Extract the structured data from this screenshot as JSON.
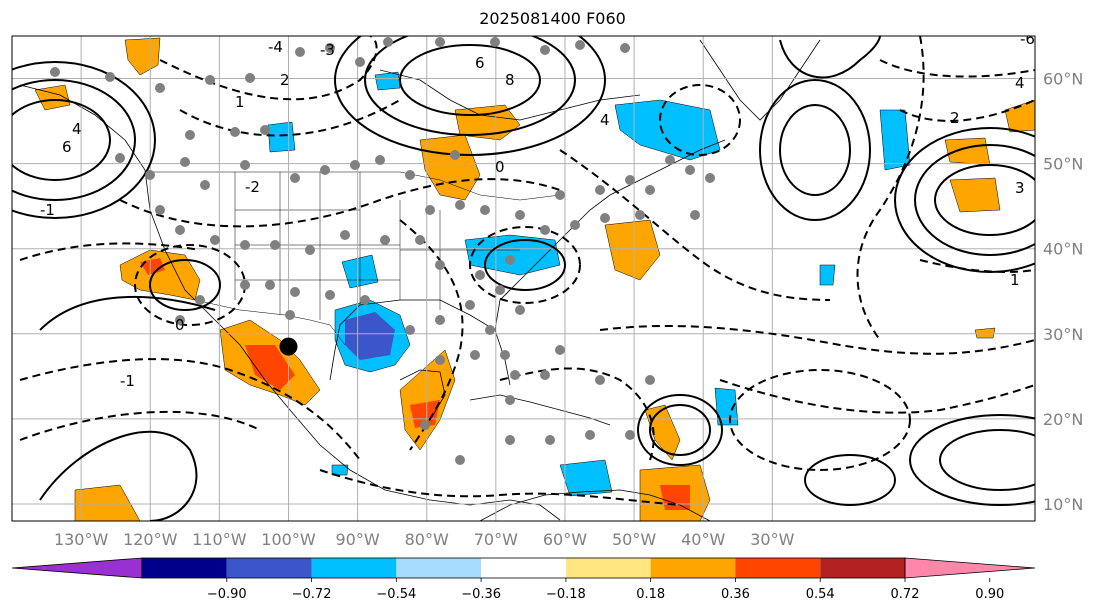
{
  "title": "2025081400 F060",
  "map": {
    "projection": "lat-lon",
    "lon_range": [
      -140,
      8
    ],
    "lat_range": [
      8,
      65
    ],
    "lon_ticks": [
      {
        "lon": -130,
        "label": "130°W"
      },
      {
        "lon": -120,
        "label": "120°W"
      },
      {
        "lon": -110,
        "label": "110°W"
      },
      {
        "lon": -100,
        "label": "100°W"
      },
      {
        "lon": -90,
        "label": "90°W"
      },
      {
        "lon": -80,
        "label": "80°W"
      },
      {
        "lon": -70,
        "label": "70°W"
      },
      {
        "lon": -60,
        "label": "60°W"
      },
      {
        "lon": -50,
        "label": "50°W"
      },
      {
        "lon": -40,
        "label": "40°W"
      },
      {
        "lon": -30,
        "label": "30°W"
      }
    ],
    "lat_ticks": [
      {
        "lat": 60,
        "label": "60°N"
      },
      {
        "lat": 50,
        "label": "50°N"
      },
      {
        "lat": 40,
        "label": "40°N"
      },
      {
        "lat": 30,
        "label": "30°N"
      },
      {
        "lat": 20,
        "label": "20°N"
      },
      {
        "lat": 10,
        "label": "10°N"
      }
    ],
    "grid": true,
    "colors": {
      "land_border": "#000000",
      "grid": "#b0b0b0",
      "tick_label": "#808080",
      "station_dot": "#808080",
      "marker": "#000000"
    },
    "highlight_marker": {
      "lon": -100,
      "lat": 28.5
    }
  },
  "colorbar": {
    "colors": [
      "#9b30d0",
      "#00008b",
      "#3a56c8",
      "#00bfff",
      "#a8dcff",
      "#ffffff",
      "#ffe680",
      "#ffa500",
      "#ff4500",
      "#b22222",
      "#ff88aa"
    ],
    "ticks": [
      "−0.90",
      "−0.72",
      "−0.54",
      "−0.36",
      "−0.18",
      "0.18",
      "0.36",
      "0.54",
      "0.72",
      "0.90"
    ],
    "extend": "both"
  },
  "contour_labels": [
    "6",
    "4",
    "2",
    "1",
    "0",
    "-2",
    "-4",
    "-6",
    "-1",
    "-3",
    "3",
    "8",
    "4",
    "2",
    "0",
    "-1",
    "1",
    "6",
    "4"
  ]
}
